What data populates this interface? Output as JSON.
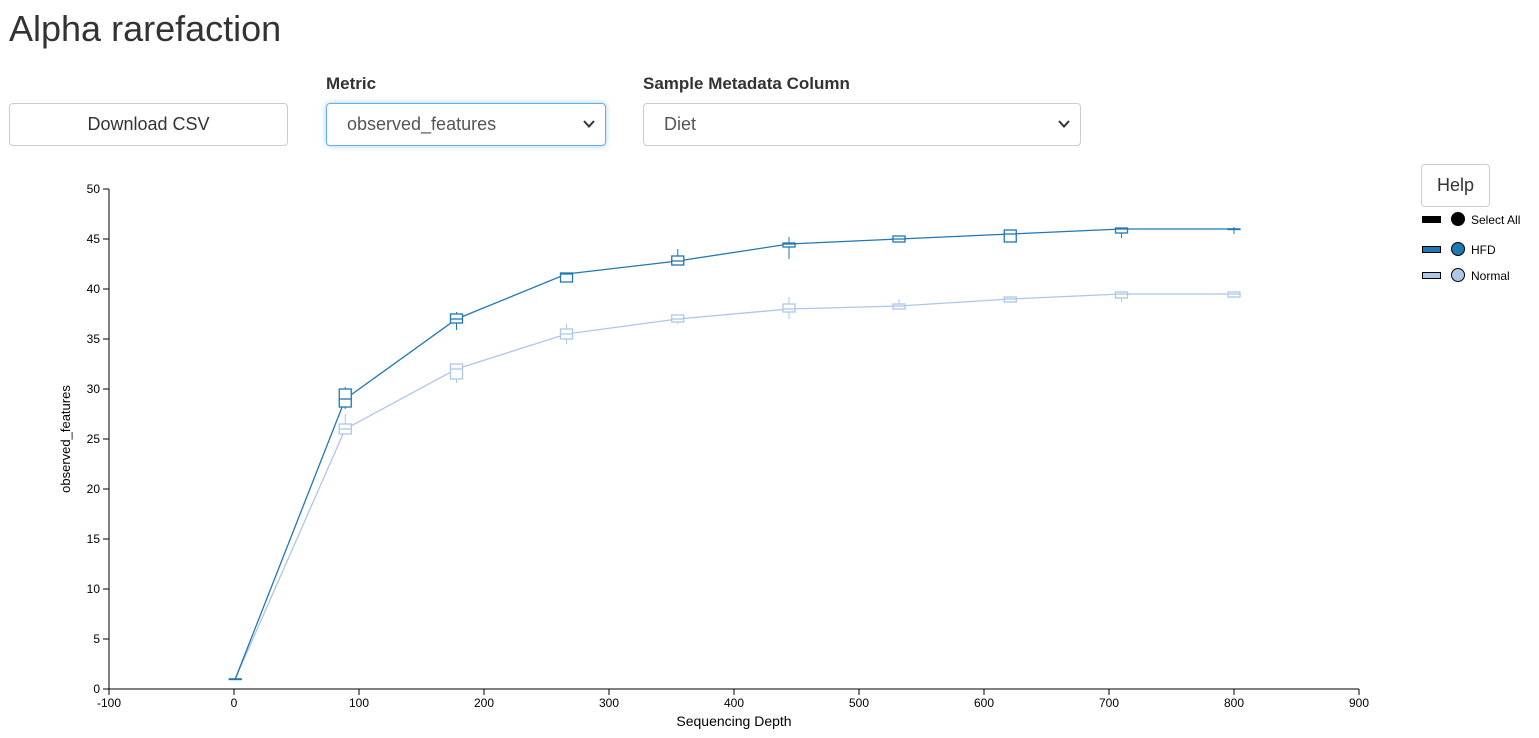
{
  "page": {
    "title": "Alpha rarefaction"
  },
  "controls": {
    "download_label": "Download CSV",
    "metric_label": "Metric",
    "metric_value": "observed_features",
    "column_label": "Sample Metadata Column",
    "column_value": "Diet",
    "help_label": "Help"
  },
  "legend": {
    "select_all": "Select All",
    "items": [
      {
        "name": "HFD",
        "color": "#1f77b4"
      },
      {
        "name": "Normal",
        "color": "#aec7e8"
      }
    ]
  },
  "chart_data": {
    "type": "line",
    "xlabel": "Sequencing Depth",
    "ylabel": "observed_features",
    "xlim": [
      -100,
      900
    ],
    "ylim": [
      0,
      50
    ],
    "xticks": [
      -100,
      0,
      100,
      200,
      300,
      400,
      500,
      600,
      700,
      800,
      900
    ],
    "yticks": [
      0,
      5,
      10,
      15,
      20,
      25,
      30,
      35,
      40,
      45,
      50
    ],
    "grid": false,
    "legend_position": "right",
    "series": [
      {
        "name": "HFD",
        "color": "#1f77b4",
        "points": [
          {
            "x": 1,
            "median": 1,
            "q1": 1,
            "q3": 1,
            "min": 1,
            "max": 1
          },
          {
            "x": 89,
            "median": 29,
            "q1": 28.2,
            "q3": 30,
            "min": 28,
            "max": 30.2
          },
          {
            "x": 178,
            "median": 37,
            "q1": 36.6,
            "q3": 37.5,
            "min": 35.9,
            "max": 37.7
          },
          {
            "x": 266,
            "median": 41.5,
            "q1": 40.7,
            "q3": 41.6,
            "min": 40.7,
            "max": 41.6
          },
          {
            "x": 355,
            "median": 42.8,
            "q1": 42.4,
            "q3": 43.3,
            "min": 42.4,
            "max": 44
          },
          {
            "x": 444,
            "median": 44.5,
            "q1": 44.2,
            "q3": 44.6,
            "min": 43,
            "max": 45.2
          },
          {
            "x": 532,
            "median": 45,
            "q1": 44.7,
            "q3": 45.3,
            "min": 44.7,
            "max": 45.3
          },
          {
            "x": 621,
            "median": 45.5,
            "q1": 44.7,
            "q3": 45.9,
            "min": 44.7,
            "max": 45.9
          },
          {
            "x": 710,
            "median": 46,
            "q1": 45.6,
            "q3": 46.1,
            "min": 45.1,
            "max": 46.1
          },
          {
            "x": 800,
            "median": 46,
            "q1": 46,
            "q3": 46,
            "min": 45.5,
            "max": 46.2
          }
        ]
      },
      {
        "name": "Normal",
        "color": "#aec7e8",
        "points": [
          {
            "x": 1,
            "median": 1,
            "q1": 1,
            "q3": 1,
            "min": 1,
            "max": 1
          },
          {
            "x": 89,
            "median": 26,
            "q1": 25.5,
            "q3": 26.5,
            "min": 25.5,
            "max": 27.5
          },
          {
            "x": 178,
            "median": 32,
            "q1": 31,
            "q3": 32.5,
            "min": 30.6,
            "max": 32.5
          },
          {
            "x": 266,
            "median": 35.5,
            "q1": 35,
            "q3": 36,
            "min": 34.5,
            "max": 36.5
          },
          {
            "x": 355,
            "median": 37,
            "q1": 36.7,
            "q3": 37.4,
            "min": 36.5,
            "max": 37.4
          },
          {
            "x": 444,
            "median": 38,
            "q1": 37.7,
            "q3": 38.5,
            "min": 37,
            "max": 39.2
          },
          {
            "x": 532,
            "median": 38.3,
            "q1": 38,
            "q3": 38.5,
            "min": 38,
            "max": 39
          },
          {
            "x": 621,
            "median": 39,
            "q1": 38.7,
            "q3": 39.2,
            "min": 38.7,
            "max": 39.2
          },
          {
            "x": 710,
            "median": 39.5,
            "q1": 39.1,
            "q3": 39.7,
            "min": 38.7,
            "max": 39.7
          },
          {
            "x": 800,
            "median": 39.5,
            "q1": 39.2,
            "q3": 39.7,
            "min": 39.1,
            "max": 39.7
          }
        ]
      }
    ]
  }
}
